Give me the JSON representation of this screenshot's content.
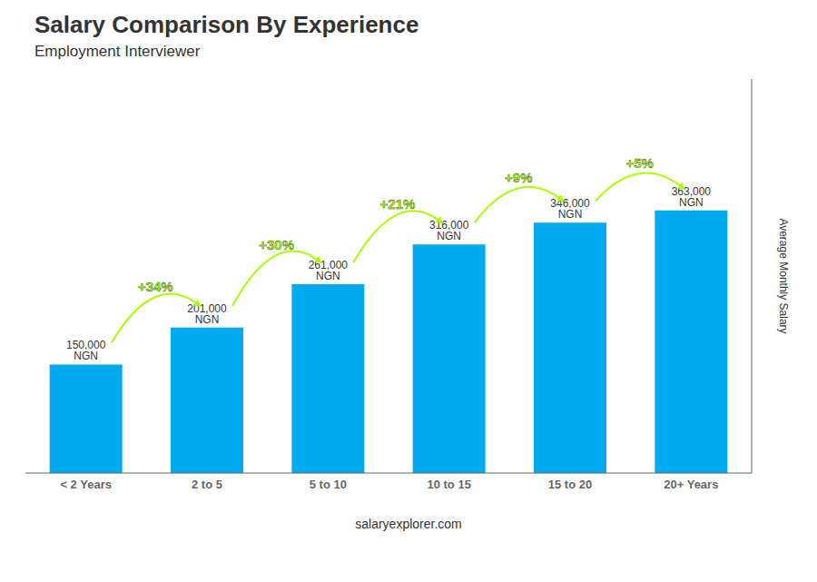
{
  "chart_data": {
    "type": "bar",
    "title": "Salary Comparison By Experience",
    "subtitle": "Employment Interviewer",
    "categories": [
      "< 2 Years",
      "2 to 5",
      "5 to 10",
      "10 to 15",
      "15 to 20",
      "20+ Years"
    ],
    "values": [
      150000,
      201000,
      261000,
      316000,
      346000,
      363000
    ],
    "value_labels": [
      "150,000 NGN",
      "201,000 NGN",
      "261,000 NGN",
      "316,000 NGN",
      "346,000 NGN",
      "363,000 NGN"
    ],
    "data_labels": true,
    "color": "#00aaee",
    "ylabel": "Average Monthly Salary",
    "ylim": [
      0,
      544500
    ],
    "tick_labels": "x",
    "annotations": [
      {
        "text": "+34%",
        "color": "#aaff00"
      },
      {
        "text": "+30%",
        "color": "#aaff00"
      },
      {
        "text": "+21%",
        "color": "#aaff00"
      },
      {
        "text": "+9%",
        "color": "#aaff00"
      },
      {
        "text": "+5%",
        "color": "#aaff00"
      }
    ],
    "watermark": "salaryexplorer.com"
  }
}
